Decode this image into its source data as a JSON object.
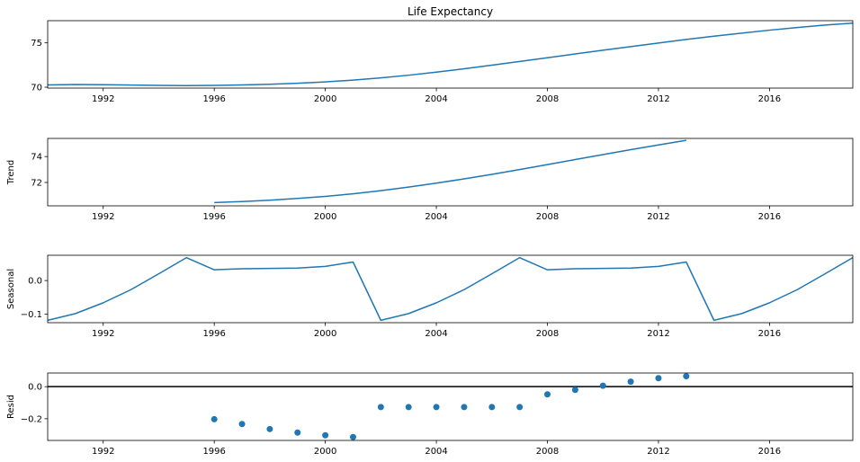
{
  "chart_data": [
    {
      "type": "line",
      "title": "Life Expectancy",
      "xlabel": "",
      "ylabel": "",
      "xlim": [
        1990,
        2019
      ],
      "ylim": [
        69.9,
        77.5
      ],
      "xticks": [
        1992,
        1996,
        2000,
        2004,
        2008,
        2012,
        2016
      ],
      "yticks": [
        70,
        75
      ],
      "ytick_labels": [
        "70",
        "75"
      ],
      "grid": false,
      "color": "#1f77b4",
      "x": [
        1990,
        1991,
        1992,
        1993,
        1994,
        1995,
        1996,
        1997,
        1998,
        1999,
        2000,
        2001,
        2002,
        2003,
        2004,
        2005,
        2006,
        2007,
        2008,
        2009,
        2010,
        2011,
        2012,
        2013,
        2014,
        2015,
        2016,
        2017,
        2018,
        2019
      ],
      "values": [
        70.25,
        70.3,
        70.28,
        70.24,
        70.2,
        70.18,
        70.2,
        70.25,
        70.33,
        70.45,
        70.6,
        70.8,
        71.05,
        71.35,
        71.7,
        72.08,
        72.48,
        72.9,
        73.32,
        73.75,
        74.17,
        74.58,
        74.98,
        75.38,
        75.75,
        76.1,
        76.43,
        76.73,
        77.0,
        77.22
      ]
    },
    {
      "type": "line",
      "title": "",
      "xlabel": "",
      "ylabel": "Trend",
      "xlim": [
        1990,
        2019
      ],
      "ylim": [
        70.2,
        75.4
      ],
      "xticks": [
        1992,
        1996,
        2000,
        2004,
        2008,
        2012,
        2016
      ],
      "yticks": [
        72,
        74
      ],
      "ytick_labels": [
        "72",
        "74"
      ],
      "grid": false,
      "color": "#1f77b4",
      "x": [
        1996,
        1997,
        1998,
        1999,
        2000,
        2001,
        2002,
        2003,
        2004,
        2005,
        2006,
        2007,
        2008,
        2009,
        2010,
        2011,
        2012,
        2013
      ],
      "values": [
        70.45,
        70.53,
        70.63,
        70.77,
        70.93,
        71.13,
        71.37,
        71.65,
        71.95,
        72.28,
        72.63,
        73.0,
        73.38,
        73.77,
        74.15,
        74.53,
        74.9,
        75.25
      ]
    },
    {
      "type": "line",
      "title": "",
      "xlabel": "",
      "ylabel": "Seasonal",
      "xlim": [
        1990,
        2019
      ],
      "ylim": [
        -0.125,
        0.075
      ],
      "xticks": [
        1992,
        1996,
        2000,
        2004,
        2008,
        2012,
        2016
      ],
      "yticks": [
        0.0,
        -0.1
      ],
      "ytick_labels": [
        "0.0",
        "−0.1"
      ],
      "grid": false,
      "color": "#1f77b4",
      "x": [
        1990,
        1991,
        1992,
        1993,
        1994,
        1995,
        1996,
        1997,
        1998,
        1999,
        2000,
        2001,
        2002,
        2003,
        2004,
        2005,
        2006,
        2007,
        2008,
        2009,
        2010,
        2011,
        2012,
        2013,
        2014,
        2015,
        2016,
        2017,
        2018,
        2019
      ],
      "values": [
        -0.118,
        -0.098,
        -0.066,
        -0.027,
        0.02,
        0.068,
        0.032,
        0.035,
        0.036,
        0.037,
        0.042,
        0.055,
        -0.118,
        -0.098,
        -0.066,
        -0.027,
        0.02,
        0.068,
        0.032,
        0.035,
        0.036,
        0.037,
        0.042,
        0.055,
        -0.118,
        -0.098,
        -0.066,
        -0.027,
        0.02,
        0.068
      ]
    },
    {
      "type": "scatter",
      "title": "",
      "xlabel": "",
      "ylabel": "Resid",
      "xlim": [
        1990,
        2019
      ],
      "ylim": [
        -0.335,
        0.085
      ],
      "xticks": [
        1992,
        1996,
        2000,
        2004,
        2008,
        2012,
        2016
      ],
      "yticks": [
        0.0,
        -0.2
      ],
      "ytick_labels": [
        "0.0",
        "−0.2"
      ],
      "grid": false,
      "zero_line": true,
      "color": "#1f77b4",
      "x": [
        1996,
        1997,
        1998,
        1999,
        2000,
        2001,
        2002,
        2003,
        2004,
        2005,
        2006,
        2007,
        2008,
        2009,
        2010,
        2011,
        2012,
        2013
      ],
      "values": [
        -0.203,
        -0.233,
        -0.264,
        -0.286,
        -0.303,
        -0.314,
        -0.127,
        -0.127,
        -0.127,
        -0.127,
        -0.127,
        -0.127,
        -0.048,
        -0.02,
        0.006,
        0.031,
        0.053,
        0.065
      ]
    }
  ]
}
